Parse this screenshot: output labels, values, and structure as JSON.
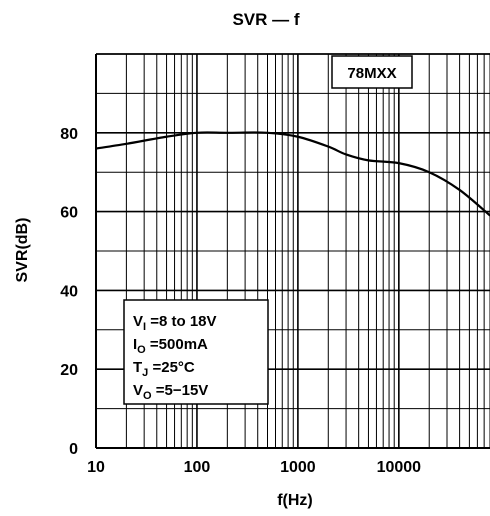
{
  "chart_data": {
    "type": "line",
    "title": "SVR — f",
    "xlabel": "f(Hz)",
    "ylabel": "SVR(dB)",
    "xscale": "log",
    "xlim": [
      10,
      80000
    ],
    "ylim": [
      0,
      100
    ],
    "x_ticks": [
      "10",
      "100",
      "1000",
      "10000"
    ],
    "y_ticks": [
      "0",
      "20",
      "40",
      "60",
      "80"
    ],
    "grid": true,
    "series": [
      {
        "x": [
          10,
          20,
          50,
          100,
          200,
          500,
          1000,
          2000,
          3000,
          5000,
          10000,
          20000,
          40000,
          80000
        ],
        "y": [
          76,
          77.2,
          79,
          80,
          80,
          80,
          79,
          76.5,
          74.5,
          73,
          72.3,
          70,
          65.5,
          59
        ]
      }
    ],
    "device_label": "78MXX",
    "conditions": {
      "vi": {
        "main": "V",
        "sub": "I",
        "text": " =8  to  18V"
      },
      "io": {
        "main": "I",
        "sub": "O",
        "text": " =500mA"
      },
      "tj": {
        "main": "T",
        "sub": "J",
        "text": " =25°C"
      },
      "vo": {
        "main": "V",
        "sub": "O",
        "text": " =5−15V"
      }
    }
  }
}
